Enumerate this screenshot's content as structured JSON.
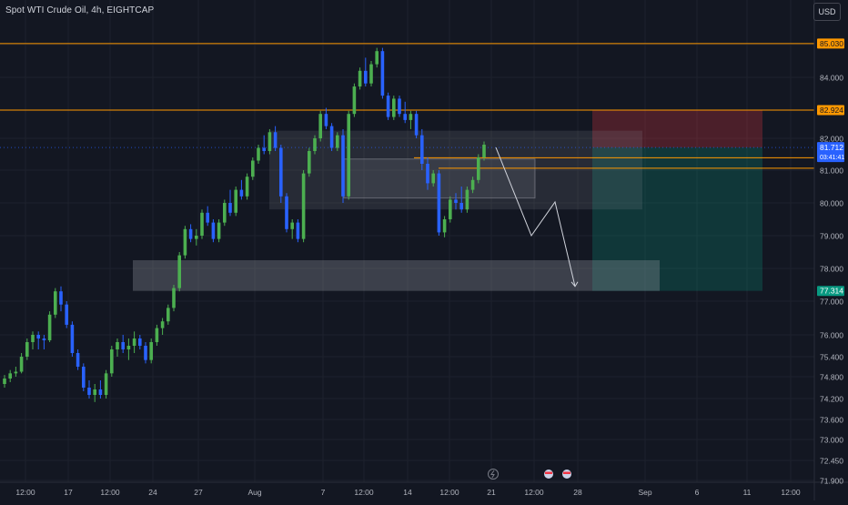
{
  "header": {
    "symbol_title": "Spot WTI Crude Oil, 4h, EIGHTCAP",
    "currency_label": "USD"
  },
  "colors": {
    "background": "#131722",
    "grid": "#1e222d",
    "up": "#4caf50",
    "down": "#2962ff",
    "level_line": "#ff9800",
    "zone_fill": "#9598a1",
    "stop_fill": "#f23645",
    "target_fill": "#089981",
    "axis_text": "#b2b5be",
    "current_price_bg": "#2962ff",
    "entry_price_bg": "#ff9800",
    "target_price_bg": "#089981"
  },
  "chart_data": {
    "type": "candlestick",
    "y_ticks": [
      "85.000",
      "84.000",
      "82.000",
      "81.000",
      "80.000",
      "79.000",
      "78.000",
      "77.000",
      "76.000",
      "75.400",
      "74.800",
      "74.200",
      "73.600",
      "73.000",
      "72.450",
      "71.900"
    ],
    "x_ticks": [
      "12:00",
      "17",
      "12:00",
      "24",
      "27",
      "Aug",
      "7",
      "12:00",
      "14",
      "12:00",
      "21",
      "12:00",
      "28",
      "Sep",
      "6",
      "11",
      "12:00"
    ],
    "price_labels": [
      {
        "label": "85.030",
        "role": "resistance-level"
      },
      {
        "label": "82.924",
        "role": "stop-level"
      },
      {
        "label": "81.712",
        "role": "current-price"
      },
      {
        "label": "03:41:41",
        "role": "bar-countdown"
      },
      {
        "label": "77.314",
        "role": "target-level"
      }
    ],
    "horizontal_levels": [
      85.03,
      82.924,
      81.712,
      81.39,
      81.06,
      77.314
    ],
    "zones": [
      {
        "name": "upper-demand-zone",
        "from": 79.8,
        "to": 82.25
      },
      {
        "name": "inner-zone",
        "from": 80.15,
        "to": 81.35
      },
      {
        "name": "lower-demand-zone",
        "from": 77.314,
        "to": 78.25
      }
    ],
    "position": {
      "entry": 81.712,
      "stop": 82.924,
      "target": 77.314
    },
    "projection": [
      81.712,
      79.0,
      80.03,
      77.45
    ],
    "candles": [
      [
        74.6,
        74.85,
        74.5,
        74.75
      ],
      [
        74.75,
        75.0,
        74.65,
        74.9
      ],
      [
        74.9,
        75.1,
        74.8,
        74.95
      ],
      [
        74.95,
        75.5,
        74.9,
        75.4
      ],
      [
        75.4,
        75.9,
        75.3,
        75.8
      ],
      [
        75.8,
        76.1,
        75.6,
        76.0
      ],
      [
        76.0,
        76.1,
        75.6,
        75.9
      ],
      [
        75.9,
        76.0,
        75.6,
        75.85
      ],
      [
        75.85,
        76.7,
        75.8,
        76.6
      ],
      [
        76.6,
        77.4,
        76.5,
        77.3
      ],
      [
        77.3,
        77.45,
        76.7,
        76.9
      ],
      [
        76.9,
        77.0,
        76.2,
        76.3
      ],
      [
        76.3,
        76.4,
        75.4,
        75.5
      ],
      [
        75.5,
        75.6,
        75.0,
        75.1
      ],
      [
        75.1,
        75.2,
        74.4,
        74.5
      ],
      [
        74.5,
        74.7,
        74.2,
        74.3
      ],
      [
        74.3,
        74.6,
        74.1,
        74.45
      ],
      [
        74.45,
        74.7,
        74.2,
        74.3
      ],
      [
        74.3,
        75.0,
        74.2,
        74.9
      ],
      [
        74.9,
        75.7,
        74.8,
        75.6
      ],
      [
        75.6,
        75.9,
        75.4,
        75.8
      ],
      [
        75.8,
        76.0,
        75.5,
        75.6
      ],
      [
        75.6,
        75.9,
        75.3,
        75.7
      ],
      [
        75.7,
        76.1,
        75.5,
        75.9
      ],
      [
        75.9,
        76.0,
        75.6,
        75.7
      ],
      [
        75.7,
        75.8,
        75.2,
        75.3
      ],
      [
        75.3,
        75.9,
        75.2,
        75.8
      ],
      [
        75.8,
        76.3,
        75.7,
        76.2
      ],
      [
        76.2,
        76.5,
        76.0,
        76.4
      ],
      [
        76.4,
        76.9,
        76.3,
        76.8
      ],
      [
        76.8,
        77.5,
        76.7,
        77.4
      ],
      [
        77.4,
        78.5,
        77.3,
        78.4
      ],
      [
        78.4,
        79.3,
        78.3,
        79.2
      ],
      [
        79.2,
        79.35,
        78.8,
        78.9
      ],
      [
        78.9,
        79.2,
        78.7,
        79.0
      ],
      [
        79.0,
        79.8,
        78.9,
        79.7
      ],
      [
        79.7,
        79.9,
        79.3,
        79.4
      ],
      [
        79.4,
        79.5,
        78.8,
        78.9
      ],
      [
        78.9,
        79.5,
        78.8,
        79.4
      ],
      [
        79.4,
        80.1,
        79.3,
        80.0
      ],
      [
        80.0,
        80.4,
        79.6,
        79.7
      ],
      [
        79.7,
        80.5,
        79.6,
        80.4
      ],
      [
        80.4,
        80.7,
        80.1,
        80.2
      ],
      [
        80.2,
        80.9,
        80.1,
        80.8
      ],
      [
        80.8,
        81.4,
        80.7,
        81.3
      ],
      [
        81.3,
        81.8,
        81.2,
        81.7
      ],
      [
        81.7,
        82.1,
        81.5,
        81.6
      ],
      [
        81.6,
        82.3,
        81.5,
        82.2
      ],
      [
        82.2,
        82.4,
        81.6,
        81.7
      ],
      [
        81.7,
        81.8,
        80.0,
        80.2
      ],
      [
        80.2,
        80.3,
        79.1,
        79.2
      ],
      [
        79.2,
        79.5,
        78.9,
        79.4
      ],
      [
        79.4,
        79.5,
        78.8,
        78.9
      ],
      [
        78.9,
        81.0,
        78.8,
        80.9
      ],
      [
        80.9,
        81.7,
        80.8,
        81.6
      ],
      [
        81.6,
        82.1,
        81.5,
        82.0
      ],
      [
        82.0,
        82.9,
        81.9,
        82.8
      ],
      [
        82.8,
        83.0,
        82.3,
        82.4
      ],
      [
        82.4,
        82.5,
        81.6,
        81.7
      ],
      [
        81.7,
        82.2,
        81.6,
        82.1
      ],
      [
        82.1,
        82.3,
        80.0,
        80.2
      ],
      [
        80.2,
        82.9,
        80.1,
        82.8
      ],
      [
        82.8,
        83.8,
        82.7,
        83.7
      ],
      [
        83.7,
        84.3,
        83.6,
        84.2
      ],
      [
        84.2,
        84.6,
        83.7,
        83.8
      ],
      [
        83.8,
        84.5,
        83.7,
        84.4
      ],
      [
        84.4,
        84.9,
        84.3,
        84.8
      ],
      [
        84.8,
        84.9,
        83.3,
        83.4
      ],
      [
        83.4,
        83.5,
        82.6,
        82.7
      ],
      [
        82.7,
        83.4,
        82.6,
        83.3
      ],
      [
        83.3,
        83.4,
        82.7,
        82.8
      ],
      [
        82.8,
        83.2,
        82.5,
        82.6
      ],
      [
        82.6,
        82.9,
        82.3,
        82.8
      ],
      [
        82.8,
        82.9,
        82.0,
        82.1
      ],
      [
        82.1,
        82.3,
        81.0,
        81.2
      ],
      [
        81.2,
        81.4,
        80.4,
        80.6
      ],
      [
        80.6,
        81.0,
        80.5,
        80.9
      ],
      [
        80.9,
        81.0,
        79.0,
        79.1
      ],
      [
        79.1,
        79.6,
        78.95,
        79.5
      ],
      [
        79.5,
        80.2,
        79.4,
        80.1
      ],
      [
        80.1,
        80.3,
        79.8,
        80.0
      ],
      [
        80.0,
        80.5,
        79.7,
        79.8
      ],
      [
        79.8,
        80.5,
        79.7,
        80.4
      ],
      [
        80.4,
        80.8,
        80.3,
        80.7
      ],
      [
        80.7,
        81.5,
        80.6,
        81.4
      ],
      [
        81.4,
        81.9,
        81.3,
        81.8
      ]
    ]
  }
}
